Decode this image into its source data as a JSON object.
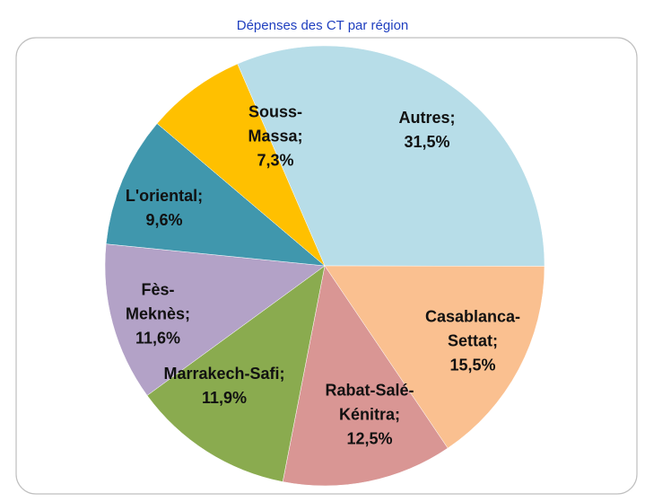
{
  "chart_data": {
    "type": "pie",
    "title": "Dépenses des CT par région",
    "categories": [
      "Autres",
      "Casablanca-Settat",
      "Rabat-Salé-Kénitra",
      "Marrakech-Safi",
      "Fès-Meknès",
      "L'oriental",
      "Souss-Massa"
    ],
    "values": [
      31.5,
      15.5,
      12.5,
      11.9,
      11.6,
      9.6,
      7.3
    ],
    "value_labels": [
      "31,5%",
      "15,5%",
      "12,5%",
      "11,9%",
      "11,6%",
      "9,6%",
      "7,3%"
    ],
    "label_separator": ";",
    "colors": [
      "#b7dde8",
      "#fac090",
      "#d99694",
      "#8aab4f",
      "#b3a2c7",
      "#4097ad",
      "#ffc000"
    ]
  }
}
